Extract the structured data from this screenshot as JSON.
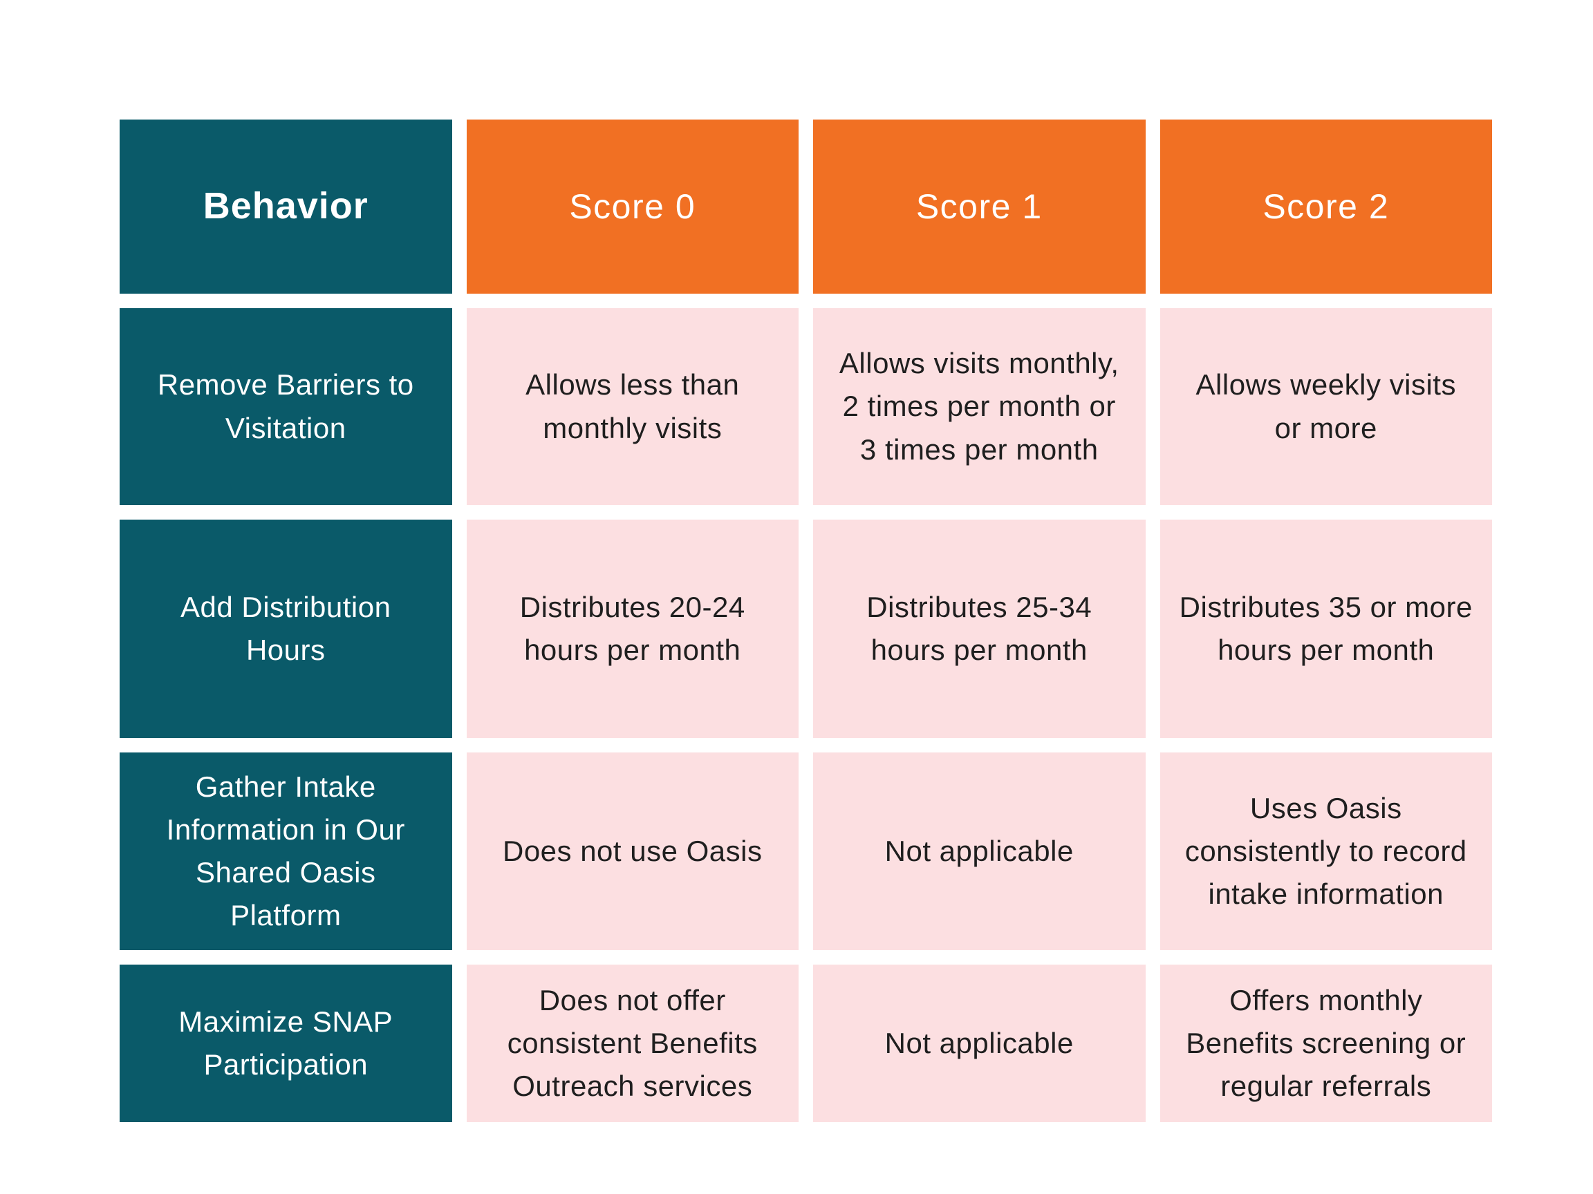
{
  "colors": {
    "teal": "#0A5A69",
    "orange": "#F17023",
    "pink": "#FCDFE1",
    "header_text": "#ffffff",
    "body_text": "#1f1f1f",
    "page_background": "#ffffff"
  },
  "table": {
    "header": {
      "behavior_label": "Behavior",
      "score_labels": [
        "Score 0",
        "Score 1",
        "Score 2"
      ]
    },
    "rows": [
      {
        "behavior": "Remove Barriers to Visitation",
        "score0": "Allows less than monthly visits",
        "score1": "Allows visits monthly, 2 times per month or 3 times per month",
        "score2": "Allows weekly visits or more"
      },
      {
        "behavior": "Add Distribution Hours",
        "score0": "Distributes 20-24 hours per month",
        "score1": "Distributes 25-34 hours per month",
        "score2": "Distributes 35 or more hours per month"
      },
      {
        "behavior": "Gather Intake Information in Our Shared Oasis Platform",
        "score0": "Does not use Oasis",
        "score1": "Not applicable",
        "score2": "Uses Oasis consistently to record intake information"
      },
      {
        "behavior": "Maximize SNAP Participation",
        "score0": "Does not offer consistent Benefits Outreach services",
        "score1": "Not applicable",
        "score2": "Offers monthly Benefits screening or regular referrals"
      }
    ]
  }
}
